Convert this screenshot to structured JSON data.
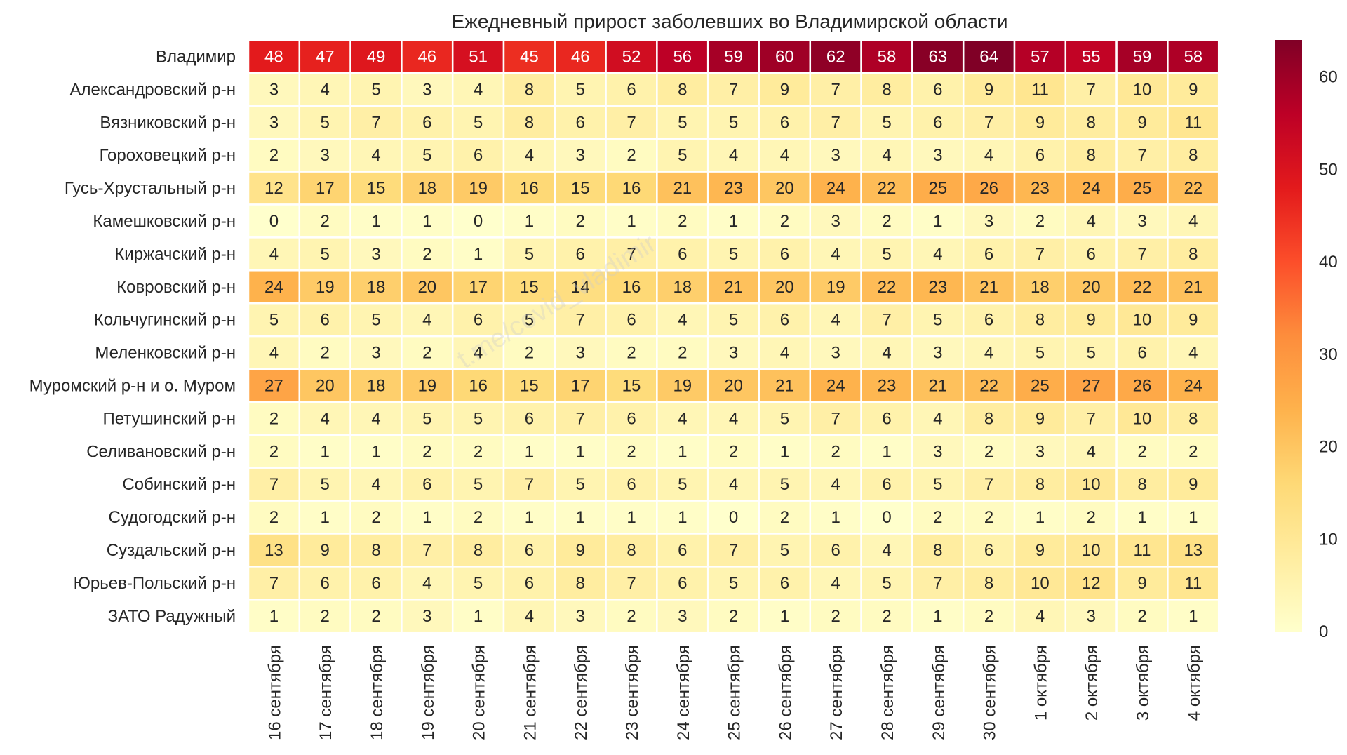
{
  "chart_data": {
    "type": "heatmap",
    "title": "Ежедневный прирост заболевших во Владимирской области",
    "rows": [
      "Владимир",
      "Александровский р-н",
      "Вязниковский р-н",
      "Гороховецкий р-н",
      "Гусь-Хрустальный р-н",
      "Камешковский р-н",
      "Киржачский р-н",
      "Ковровский р-н",
      "Кольчугинский р-н",
      "Меленковский р-н",
      "Муромский р-н и о. Муром",
      "Петушинский р-н",
      "Селивановский р-н",
      "Собинский р-н",
      "Судогодский р-н",
      "Суздальский р-н",
      "Юрьев-Польский р-н",
      "ЗАТО Радужный"
    ],
    "columns": [
      "16 сентября",
      "17 сентября",
      "18 сентября",
      "19 сентября",
      "20 сентября",
      "21 сентября",
      "22 сентября",
      "23 сентября",
      "24 сентября",
      "25 сентября",
      "26 сентября",
      "27 сентября",
      "28 сентября",
      "29 сентября",
      "30 сентября",
      "1 октября",
      "2 октября",
      "3 октября",
      "4 октября"
    ],
    "values": [
      [
        48,
        47,
        49,
        46,
        51,
        45,
        46,
        52,
        56,
        59,
        60,
        62,
        58,
        63,
        64,
        57,
        55,
        59,
        58
      ],
      [
        3,
        4,
        5,
        3,
        4,
        8,
        5,
        6,
        8,
        7,
        9,
        7,
        8,
        6,
        9,
        11,
        7,
        10,
        9
      ],
      [
        3,
        5,
        7,
        6,
        5,
        8,
        6,
        7,
        5,
        5,
        6,
        7,
        5,
        6,
        7,
        9,
        8,
        9,
        11
      ],
      [
        2,
        3,
        4,
        5,
        6,
        4,
        3,
        2,
        5,
        4,
        4,
        3,
        4,
        3,
        4,
        6,
        8,
        7,
        8
      ],
      [
        12,
        17,
        15,
        18,
        19,
        16,
        15,
        16,
        21,
        23,
        20,
        24,
        22,
        25,
        26,
        23,
        24,
        25,
        22
      ],
      [
        0,
        2,
        1,
        1,
        0,
        1,
        2,
        1,
        2,
        1,
        2,
        3,
        2,
        1,
        3,
        2,
        4,
        3,
        4
      ],
      [
        4,
        5,
        3,
        2,
        1,
        5,
        6,
        7,
        6,
        5,
        6,
        4,
        5,
        4,
        6,
        7,
        6,
        7,
        8
      ],
      [
        24,
        19,
        18,
        20,
        17,
        15,
        14,
        16,
        18,
        21,
        20,
        19,
        22,
        23,
        21,
        18,
        20,
        22,
        21
      ],
      [
        5,
        6,
        5,
        4,
        6,
        5,
        7,
        6,
        4,
        5,
        6,
        4,
        7,
        5,
        6,
        8,
        9,
        10,
        9
      ],
      [
        4,
        2,
        3,
        2,
        4,
        2,
        3,
        2,
        2,
        3,
        4,
        3,
        4,
        3,
        4,
        5,
        5,
        6,
        4
      ],
      [
        27,
        20,
        18,
        19,
        16,
        15,
        17,
        15,
        19,
        20,
        21,
        24,
        23,
        21,
        22,
        25,
        27,
        26,
        24
      ],
      [
        2,
        4,
        4,
        5,
        5,
        6,
        7,
        6,
        4,
        4,
        5,
        7,
        6,
        4,
        8,
        9,
        7,
        10,
        8
      ],
      [
        2,
        1,
        1,
        2,
        2,
        1,
        1,
        2,
        1,
        2,
        1,
        2,
        1,
        3,
        2,
        3,
        4,
        2,
        2
      ],
      [
        7,
        5,
        4,
        6,
        5,
        7,
        5,
        6,
        5,
        4,
        5,
        4,
        6,
        5,
        7,
        8,
        10,
        8,
        9
      ],
      [
        2,
        1,
        2,
        1,
        2,
        1,
        1,
        1,
        1,
        0,
        2,
        1,
        0,
        2,
        2,
        1,
        2,
        1,
        1
      ],
      [
        13,
        9,
        8,
        7,
        8,
        6,
        9,
        8,
        6,
        7,
        5,
        6,
        4,
        8,
        6,
        9,
        10,
        11,
        13
      ],
      [
        7,
        6,
        6,
        4,
        5,
        6,
        8,
        7,
        6,
        5,
        6,
        4,
        5,
        7,
        8,
        10,
        12,
        9,
        11
      ],
      [
        1,
        2,
        2,
        3,
        1,
        4,
        3,
        2,
        3,
        2,
        1,
        2,
        2,
        1,
        2,
        4,
        3,
        2,
        1
      ]
    ],
    "colorbar": {
      "min": 0,
      "max": 64,
      "ticks": [
        0,
        10,
        20,
        30,
        40,
        50,
        60
      ],
      "colormap": "YlOrRd"
    },
    "grid": false,
    "watermark": "t.me/covid_vladimir"
  }
}
